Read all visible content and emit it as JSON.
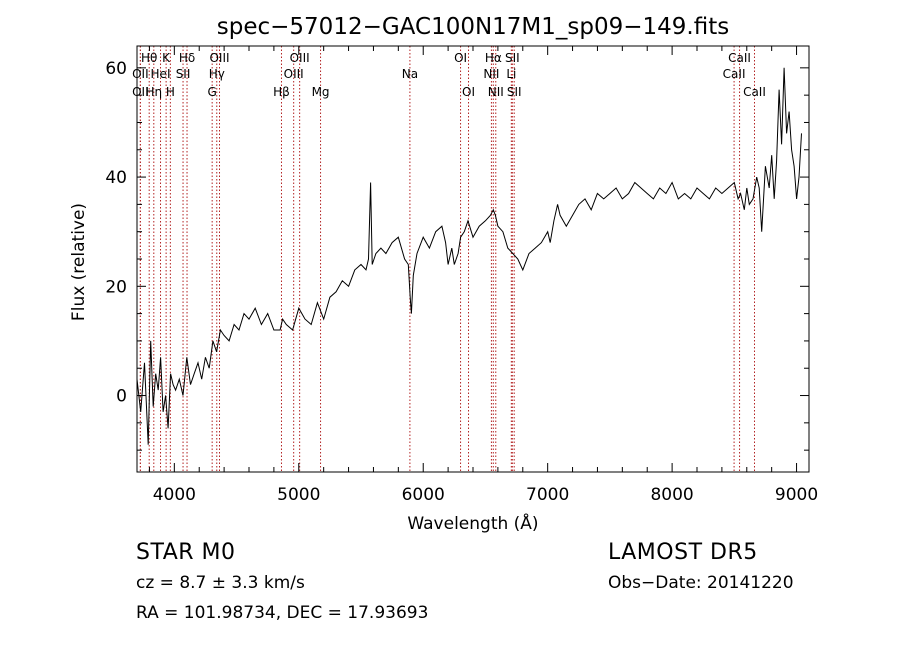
{
  "chart_data": {
    "type": "line",
    "title": "spec−57012−GAC100N17M1_sp09−149.fits",
    "xlabel": "Wavelength (Å)",
    "ylabel": "Flux (relative)",
    "xlim": [
      3700,
      9100
    ],
    "ylim": [
      -14,
      64
    ],
    "xticks": [
      4000,
      5000,
      6000,
      7000,
      8000,
      9000
    ],
    "yticks": [
      0,
      20,
      40,
      60
    ],
    "grid": false,
    "line_color": "#000000",
    "marker_color": "#b22222",
    "series": [
      {
        "x": [
          3700,
          3730,
          3760,
          3790,
          3810,
          3830,
          3850,
          3870,
          3890,
          3910,
          3930,
          3950,
          3970,
          3990,
          4010,
          4040,
          4070,
          4100,
          4130,
          4160,
          4190,
          4220,
          4250,
          4280,
          4310,
          4340,
          4370,
          4400,
          4440,
          4480,
          4520,
          4560,
          4600,
          4650,
          4700,
          4750,
          4800,
          4850,
          4870,
          4900,
          4950,
          5000,
          5050,
          5100,
          5150,
          5200,
          5250,
          5300,
          5350,
          5400,
          5450,
          5500,
          5540,
          5560,
          5577,
          5590,
          5620,
          5660,
          5700,
          5750,
          5800,
          5850,
          5880,
          5895,
          5905,
          5920,
          5950,
          6000,
          6050,
          6100,
          6150,
          6180,
          6200,
          6230,
          6250,
          6280,
          6300,
          6330,
          6360,
          6400,
          6450,
          6500,
          6540,
          6563,
          6580,
          6600,
          6640,
          6680,
          6720,
          6760,
          6800,
          6850,
          6900,
          6950,
          7000,
          7020,
          7050,
          7080,
          7100,
          7150,
          7200,
          7250,
          7300,
          7350,
          7400,
          7450,
          7500,
          7550,
          7600,
          7650,
          7700,
          7750,
          7800,
          7850,
          7900,
          7950,
          8000,
          8050,
          8100,
          8150,
          8200,
          8250,
          8300,
          8350,
          8400,
          8450,
          8500,
          8530,
          8550,
          8580,
          8600,
          8620,
          8650,
          8680,
          8700,
          8720,
          8750,
          8780,
          8800,
          8820,
          8840,
          8860,
          8880,
          8900,
          8920,
          8940,
          8960,
          8980,
          9000,
          9020,
          9040
        ],
        "y": [
          3,
          -3,
          6,
          -9,
          10,
          -2,
          4,
          1,
          7,
          -3,
          0,
          -6,
          4,
          2,
          1,
          3,
          0,
          7,
          2,
          4,
          6,
          3,
          7,
          5,
          10,
          8,
          12,
          11,
          10,
          13,
          12,
          15,
          14,
          16,
          13,
          15,
          12,
          12,
          14,
          13,
          12,
          16,
          14,
          13,
          17,
          14,
          18,
          19,
          21,
          20,
          23,
          24,
          23,
          25,
          39,
          24,
          26,
          27,
          26,
          28,
          29,
          25,
          24,
          18,
          15,
          22,
          26,
          29,
          27,
          30,
          31,
          28,
          24,
          27,
          24,
          26,
          29,
          30,
          32,
          29,
          31,
          32,
          33,
          34,
          33,
          31,
          30,
          27,
          26,
          25,
          23,
          26,
          27,
          28,
          30,
          28,
          32,
          35,
          33,
          31,
          33,
          35,
          36,
          34,
          37,
          36,
          37,
          38,
          36,
          37,
          39,
          38,
          37,
          36,
          38,
          37,
          39,
          36,
          37,
          36,
          38,
          37,
          36,
          38,
          37,
          38,
          39,
          36,
          37,
          34,
          38,
          35,
          36,
          40,
          38,
          30,
          42,
          38,
          44,
          36,
          43,
          56,
          46,
          60,
          48,
          52,
          45,
          42,
          36,
          40,
          48
        ],
        "name": ""
      }
    ],
    "lines": [
      {
        "label": "Hθ",
        "x": 3798,
        "row": 1
      },
      {
        "label": "OII",
        "x": 3727,
        "row": 2
      },
      {
        "label": "OII",
        "x": 3727,
        "row": 3
      },
      {
        "label": "Hη",
        "x": 3835,
        "row": 3
      },
      {
        "label": "HeI",
        "x": 3889,
        "row": 2
      },
      {
        "label": "K",
        "x": 3934,
        "row": 1
      },
      {
        "label": "H",
        "x": 3968,
        "row": 3
      },
      {
        "label": "Hδ",
        "x": 4102,
        "row": 1
      },
      {
        "label": "SII",
        "x": 4070,
        "row": 2
      },
      {
        "label": "OIII",
        "x": 4363,
        "row": 1
      },
      {
        "label": "Hγ",
        "x": 4341,
        "row": 2
      },
      {
        "label": "G",
        "x": 4304,
        "row": 3
      },
      {
        "label": "OIII",
        "x": 5007,
        "row": 1
      },
      {
        "label": "OIII",
        "x": 4959,
        "row": 2
      },
      {
        "label": "Hβ",
        "x": 4861,
        "row": 3
      },
      {
        "label": "Mg",
        "x": 5175,
        "row": 3
      },
      {
        "label": "Na",
        "x": 5893,
        "row": 2
      },
      {
        "label": "OI",
        "x": 6300,
        "row": 1
      },
      {
        "label": "OI",
        "x": 6364,
        "row": 3
      },
      {
        "label": "Hα",
        "x": 6563,
        "row": 1
      },
      {
        "label": "NII",
        "x": 6548,
        "row": 2
      },
      {
        "label": "NII",
        "x": 6583,
        "row": 3
      },
      {
        "label": "SII",
        "x": 6716,
        "row": 1
      },
      {
        "label": "Li",
        "x": 6708,
        "row": 2
      },
      {
        "label": "SII",
        "x": 6731,
        "row": 3
      },
      {
        "label": "CaII",
        "x": 8542,
        "row": 1
      },
      {
        "label": "CaII",
        "x": 8498,
        "row": 2
      },
      {
        "label": "CaII",
        "x": 8662,
        "row": 3
      }
    ]
  },
  "info": {
    "classification": "STAR     M0",
    "survey": "LAMOST  DR5",
    "cz": "cz = 8.7 ± 3.3 km/s",
    "obs_date": "Obs−Date: 20141220",
    "coords": "RA = 101.98734, DEC =  17.93693"
  }
}
